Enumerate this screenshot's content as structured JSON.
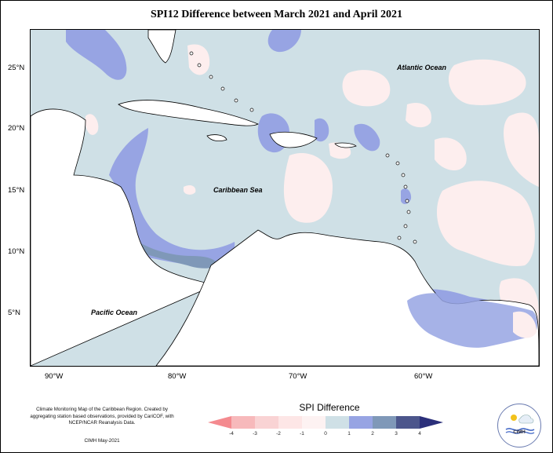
{
  "title": "SPI12 Difference between March 2021 and April 2021",
  "lat_labels": [
    "25°N",
    "20°N",
    "15°N",
    "10°N",
    "5°N"
  ],
  "lon_labels": [
    "90°W",
    "80°W",
    "70°W",
    "60°W"
  ],
  "ocean_labels": {
    "atlantic": "Atlantic Ocean",
    "caribbean": "Caribbean Sea",
    "pacific": "Pacific Ocean"
  },
  "credit": {
    "text": "Climate Monitoring Map of the Caribbean Region. Created by aggregating station based observations, provided by CariCOF, with NCEP/NCAR Reanalysis Data.",
    "date": "CIMH May-2021"
  },
  "legend": {
    "title": "SPI Difference",
    "ticks": [
      "-4",
      "-3",
      "-2",
      "-1",
      "0",
      "1",
      "2",
      "3",
      "4"
    ],
    "colors": [
      "#f48a8f",
      "#f7b9bb",
      "#f9d3d4",
      "#fde6e6",
      "#fdf2f2",
      "#cfe0e6",
      "#97a4e3",
      "#7f98b8",
      "#4c568c",
      "#2b2f7a"
    ]
  },
  "colors": {
    "no_change": "#cfe0e6",
    "slight_dry": "#fdeeee",
    "wetter": "#97a4e3",
    "wetter_strong": "#7f98b8",
    "land": "#ffffff"
  },
  "logo": {
    "text": "CIMH"
  }
}
